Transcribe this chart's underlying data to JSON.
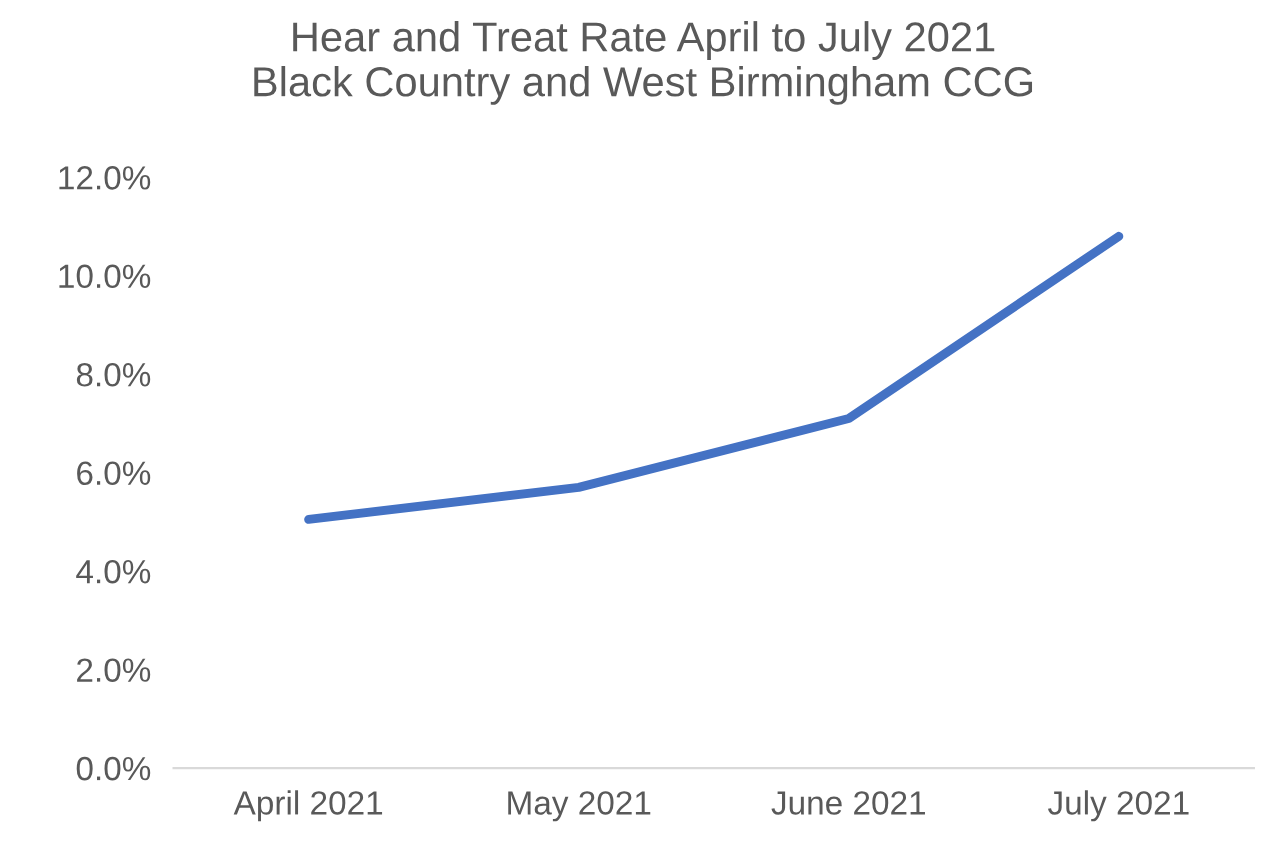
{
  "chart_data": {
    "type": "line",
    "title": "Hear and Treat Rate April to July 2021\nBlack Country and West Birmingham CCG",
    "categories": [
      "April 2021",
      "May 2021",
      "June 2021",
      "July 2021"
    ],
    "series": [
      {
        "color": "#4472c4",
        "values": [
          5.05,
          5.7,
          7.1,
          10.8
        ]
      }
    ],
    "ylim": [
      0,
      12
    ],
    "yticks": [
      {
        "value": 0,
        "label": "0.0%"
      },
      {
        "value": 2,
        "label": "2.0%"
      },
      {
        "value": 4,
        "label": "4.0%"
      },
      {
        "value": 6,
        "label": "6.0%"
      },
      {
        "value": 8,
        "label": "8.0%"
      },
      {
        "value": 10,
        "label": "10.0%"
      },
      {
        "value": 12,
        "label": "12.0%"
      }
    ],
    "grid": false,
    "marker": "none",
    "line_style": "solid"
  }
}
